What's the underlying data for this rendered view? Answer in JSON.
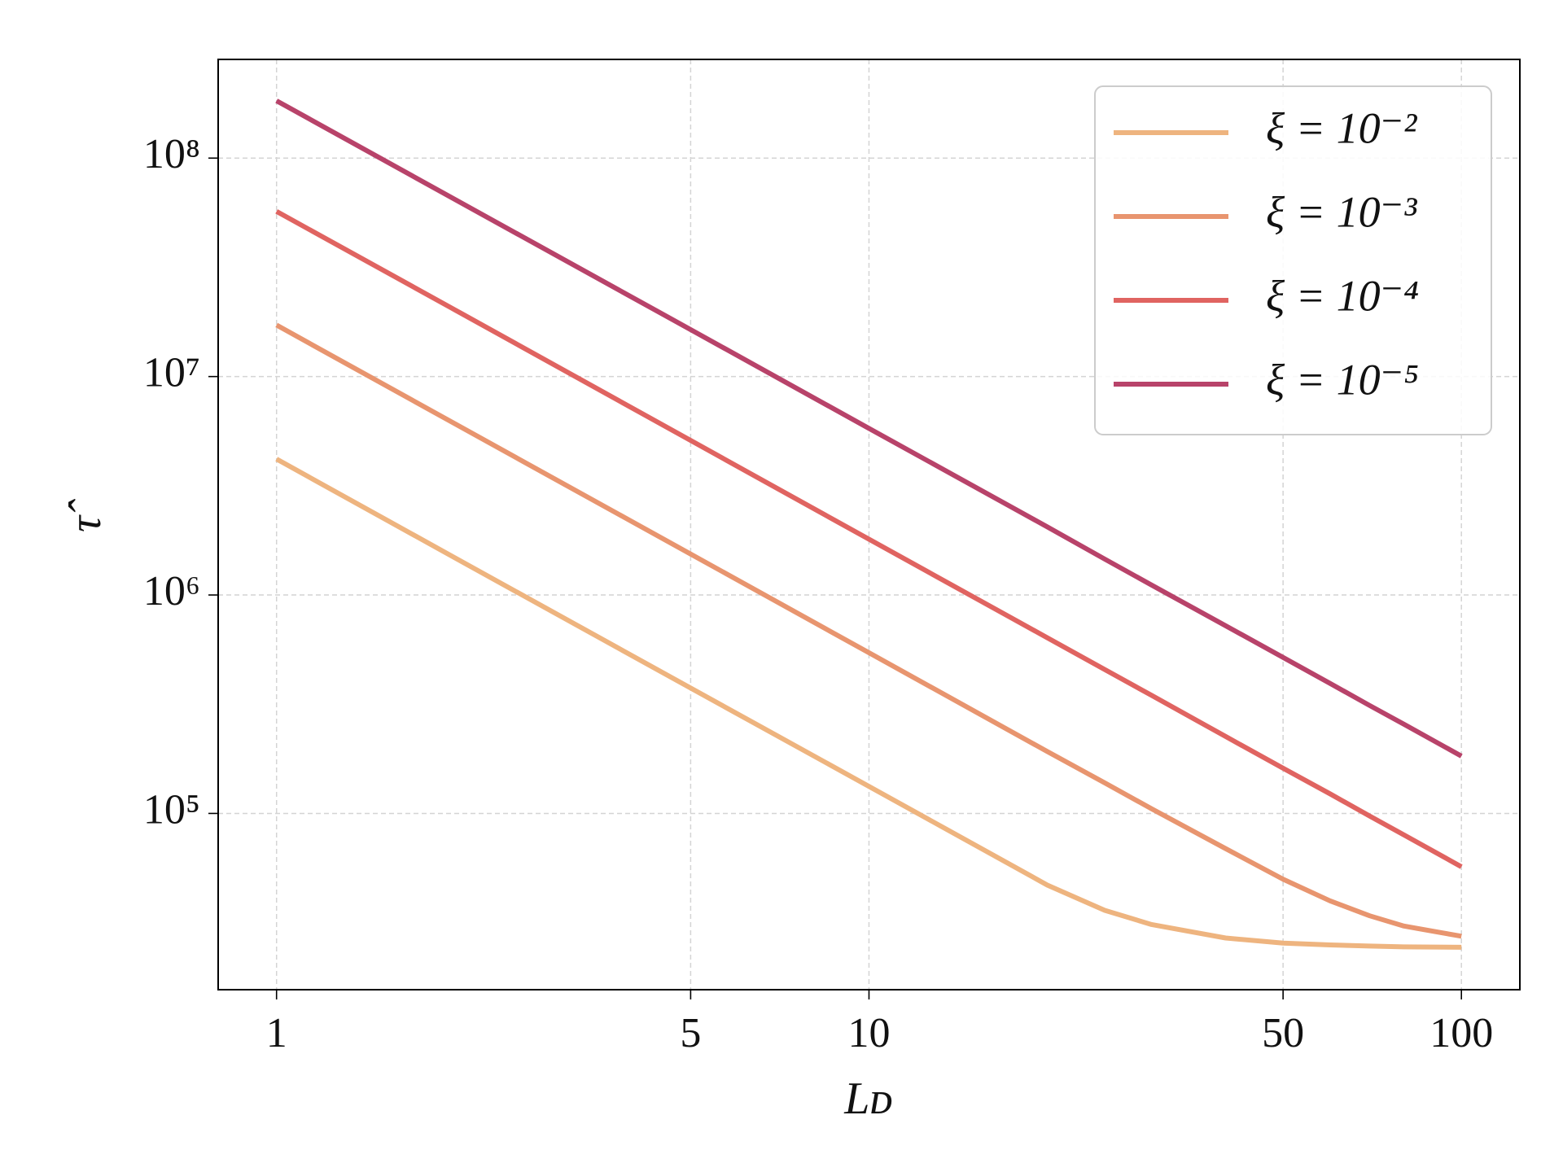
{
  "chart_data": {
    "type": "line",
    "x_label": "Lᴅ",
    "y_label": "τ̂",
    "x_scale": "log",
    "y_scale": "log",
    "grid": true,
    "legend": "upper right",
    "x": [
      1,
      2,
      5,
      10,
      20,
      25,
      30,
      40,
      50,
      60,
      70,
      80,
      100
    ],
    "series": [
      {
        "name": "ξ = 10⁻²",
        "color": "#eeb47f",
        "values": [
          4190000,
          1480000,
          375000,
          133000,
          47000,
          36000,
          31000,
          26900,
          25500,
          25000,
          24700,
          24500,
          24400
        ]
      },
      {
        "name": "ξ = 10⁻³",
        "color": "#e8956f",
        "values": [
          17200000,
          6080000,
          1540000,
          544000,
          192000,
          138000,
          105000,
          69000,
          50000,
          39800,
          34000,
          30500,
          27400
        ]
      },
      {
        "name": "ξ = 10⁻⁴",
        "color": "#e06461",
        "values": [
          57000000,
          20200000,
          5100000,
          1800000,
          637000,
          456000,
          347000,
          225000,
          161000,
          123000,
          97300,
          79700,
          57000
        ]
      },
      {
        "name": "ξ = 10⁻⁵",
        "color": "#b8436a",
        "values": [
          183000000,
          64700000,
          16400000,
          5790000,
          2050000,
          1460000,
          1110000,
          723000,
          518000,
          394000,
          312000,
          256000,
          183000
        ]
      }
    ],
    "xlim": [
      0.797,
      125.5
    ],
    "ylim": [
      15600,
      283000000
    ],
    "xticks": [
      1,
      5,
      10,
      50,
      100
    ],
    "yticks": [
      {
        "value": 100000,
        "label": "10⁵"
      },
      {
        "value": 1000000,
        "label": "10⁶"
      },
      {
        "value": 10000000,
        "label": "10⁷"
      },
      {
        "value": 100000000,
        "label": "10⁸"
      }
    ]
  }
}
